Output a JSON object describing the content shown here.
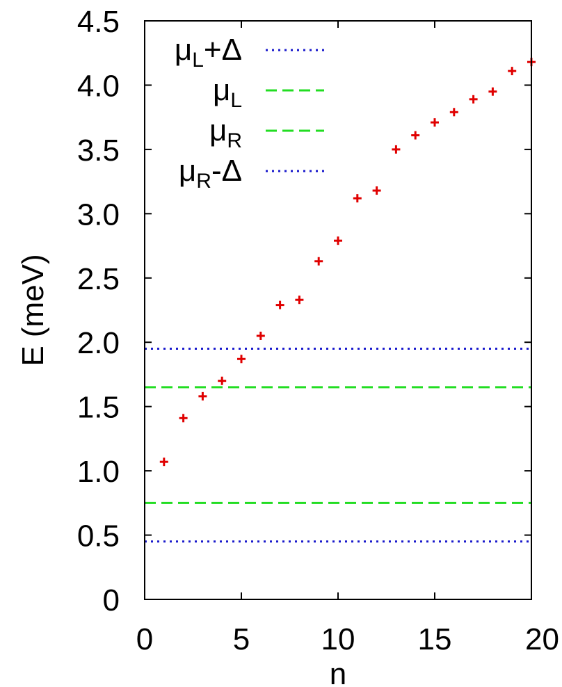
{
  "chart_data": {
    "type": "scatter",
    "xlabel": "n",
    "ylabel": "E (meV)",
    "xlim": [
      0,
      20
    ],
    "ylim": [
      0,
      4.5
    ],
    "x_ticks": [
      "0",
      "5",
      "10",
      "15",
      "20"
    ],
    "y_ticks": [
      "0",
      "0.5",
      "1.0",
      "1.5",
      "2.0",
      "2.5",
      "3.0",
      "3.5",
      "4.0",
      "4.5"
    ],
    "grid": false,
    "legend_position": "top-left",
    "series": [
      {
        "marker": "plus",
        "color": "#e00000",
        "x": [
          1,
          2,
          3,
          4,
          5,
          6,
          7,
          8,
          9,
          10,
          11,
          12,
          13,
          14,
          15,
          16,
          17,
          18,
          19,
          20
        ],
        "y": [
          1.07,
          1.41,
          1.58,
          1.7,
          1.87,
          2.05,
          2.29,
          2.33,
          2.63,
          2.79,
          3.12,
          3.18,
          3.5,
          3.61,
          3.71,
          3.79,
          3.89,
          3.95,
          4.11,
          4.18
        ]
      }
    ],
    "reference_lines": [
      {
        "legend_main": "μ",
        "legend_sub": "L",
        "legend_suffix": "+Δ",
        "y": 1.95,
        "style": "dotted",
        "color": "#1a1acc"
      },
      {
        "legend_main": "μ",
        "legend_sub": "L",
        "legend_suffix": "",
        "y": 1.65,
        "style": "dashed",
        "color": "#22dd22"
      },
      {
        "legend_main": "μ",
        "legend_sub": "R",
        "legend_suffix": "",
        "y": 0.75,
        "style": "dashed",
        "color": "#22dd22"
      },
      {
        "legend_main": "μ",
        "legend_sub": "R",
        "legend_suffix": "-Δ",
        "y": 0.45,
        "style": "dotted",
        "color": "#1a1acc"
      }
    ]
  }
}
